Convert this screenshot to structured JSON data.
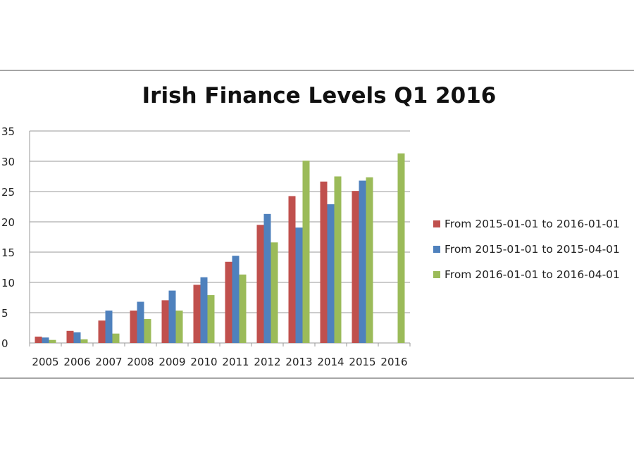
{
  "chart_data": {
    "type": "bar",
    "title": "Irish Finance Levels Q1 2016",
    "xlabel": "",
    "ylabel": "",
    "ylim": [
      0,
      35
    ],
    "yticks": [
      "0",
      "5",
      "10",
      "15",
      "20",
      "25",
      "30",
      "35"
    ],
    "grid": true,
    "legend_position": "right",
    "categories": [
      "2005",
      "2006",
      "2007",
      "2008",
      "2009",
      "2010",
      "2011",
      "2012",
      "2013",
      "2014",
      "2015",
      "2016"
    ],
    "series": [
      {
        "name": "From 2015-01-01 to 2016-01-01",
        "color": "#c0504d",
        "values": [
          1.05,
          2.0,
          3.7,
          5.35,
          7.05,
          9.6,
          13.4,
          19.5,
          24.25,
          26.65,
          25.1,
          null
        ]
      },
      {
        "name": "From 2015-01-01 to 2015-04-01",
        "color": "#4f81bd",
        "values": [
          0.9,
          1.75,
          5.35,
          6.8,
          8.65,
          10.85,
          14.4,
          21.3,
          19.05,
          22.9,
          26.8,
          null
        ]
      },
      {
        "name": "From 2016-01-01 to 2016-04-01",
        "color": "#9bbb59",
        "values": [
          0.5,
          0.6,
          1.55,
          3.95,
          5.35,
          7.9,
          11.3,
          16.6,
          30.1,
          27.5,
          27.35,
          31.3
        ]
      }
    ]
  }
}
